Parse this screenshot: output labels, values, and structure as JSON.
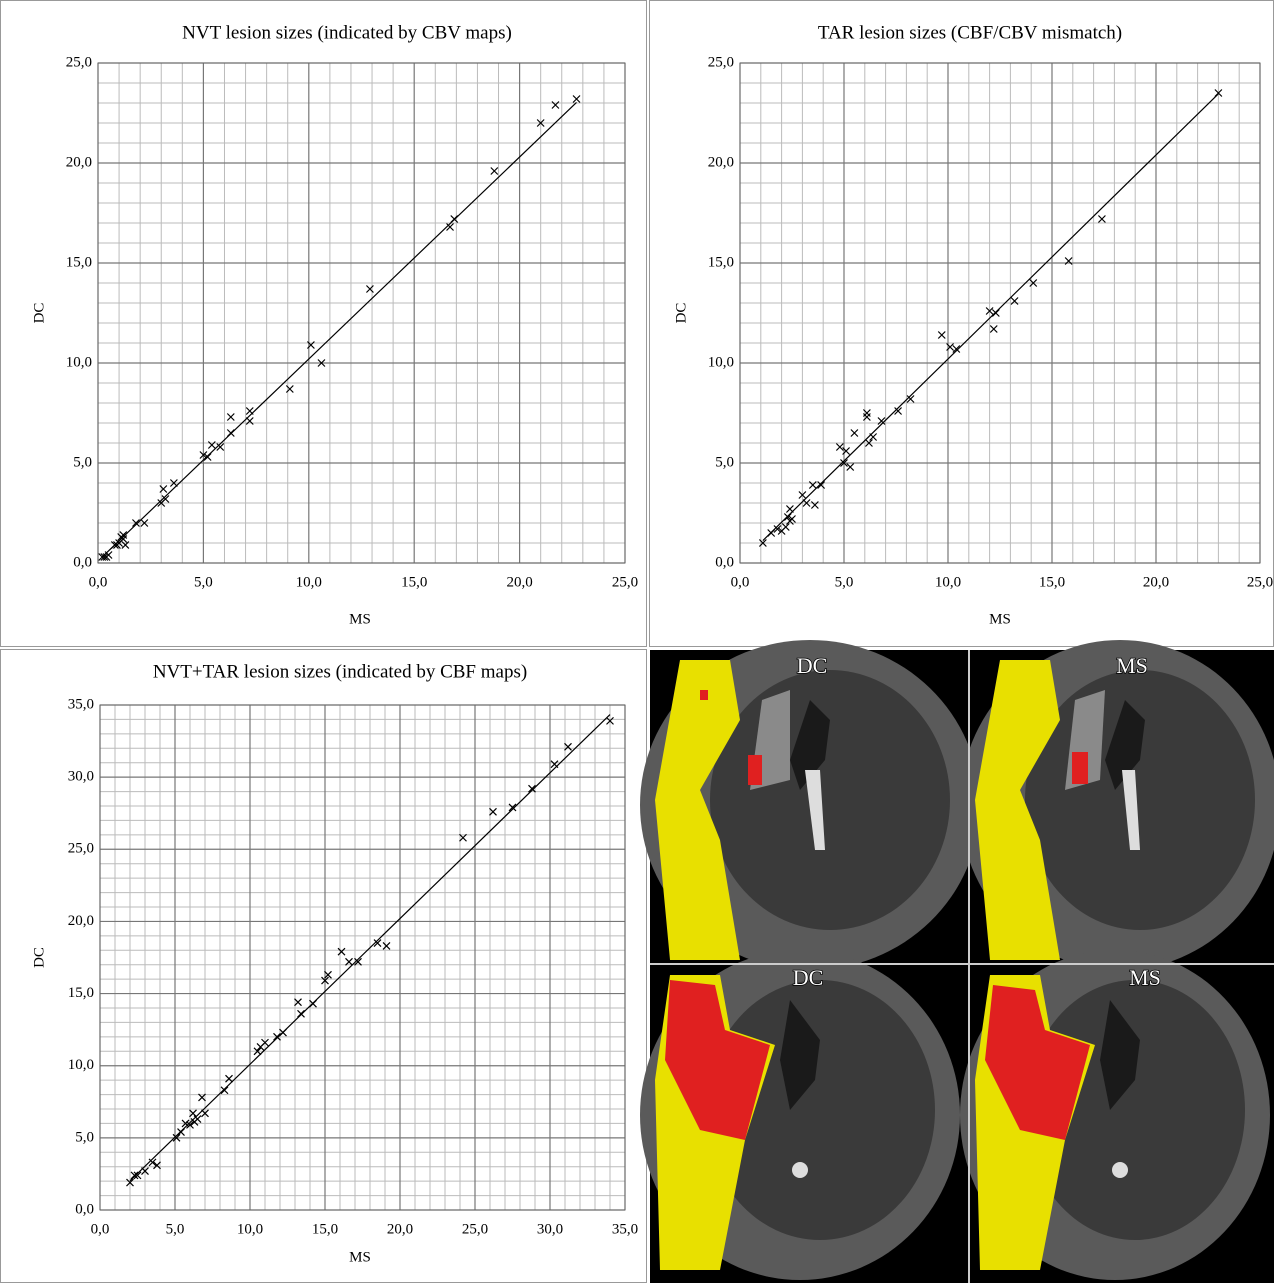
{
  "chart_data": [
    {
      "type": "scatter",
      "title": "NVT lesion sizes (indicated by CBV maps)",
      "x_label": "MS",
      "y_label": "DC",
      "x": [
        0.2,
        0.3,
        0.4,
        0.5,
        0.8,
        0.9,
        1.0,
        1.1,
        1.2,
        1.3,
        1.2,
        1.8,
        2.2,
        3.0,
        3.1,
        3.2,
        3.6,
        5.0,
        5.2,
        5.4,
        5.8,
        6.3,
        6.3,
        7.2,
        7.2,
        9.1,
        10.1,
        10.6,
        12.9,
        16.7,
        16.9,
        18.8,
        21.0,
        21.7,
        22.7
      ],
      "values": [
        0.3,
        0.3,
        0.3,
        0.4,
        0.9,
        0.9,
        1.0,
        1.3,
        1.2,
        0.9,
        1.4,
        2.0,
        2.0,
        3.0,
        3.7,
        3.2,
        4.0,
        5.4,
        5.3,
        5.9,
        5.8,
        6.5,
        7.3,
        7.1,
        7.6,
        8.7,
        10.9,
        10.0,
        13.7,
        16.8,
        17.2,
        19.6,
        22.0,
        22.9,
        23.2
      ],
      "trendline": {
        "slope": 1.01,
        "intercept": 0.1
      },
      "xlim": [
        0,
        25
      ],
      "ylim": [
        0,
        25
      ],
      "xticks": [
        {
          "value": 0,
          "label": "0,0"
        },
        {
          "value": 5,
          "label": "5,0"
        },
        {
          "value": 10,
          "label": "10,0"
        },
        {
          "value": 15,
          "label": "15,0"
        },
        {
          "value": 20,
          "label": "20,0"
        },
        {
          "value": 25,
          "label": "25,0"
        }
      ],
      "yticks": [
        {
          "value": 0,
          "label": "0,0"
        },
        {
          "value": 5,
          "label": "5,0"
        },
        {
          "value": 10,
          "label": "10,0"
        },
        {
          "value": 15,
          "label": "15,0"
        },
        {
          "value": 20,
          "label": "20,0"
        },
        {
          "value": 25,
          "label": "25,0"
        }
      ],
      "grid": true
    },
    {
      "type": "scatter",
      "title": "TAR lesion sizes (CBF/CBV mismatch)",
      "x_label": "MS",
      "y_label": "DC",
      "x": [
        1.1,
        1.5,
        1.8,
        2.0,
        2.2,
        2.3,
        2.4,
        2.4,
        2.5,
        3.0,
        3.2,
        3.5,
        3.6,
        3.9,
        4.8,
        5.0,
        5.1,
        5.3,
        5.5,
        6.1,
        6.1,
        6.2,
        6.4,
        6.8,
        7.6,
        8.2,
        9.7,
        10.1,
        10.4,
        12.0,
        12.2,
        12.3,
        13.2,
        14.1,
        15.8,
        17.4,
        23.0
      ],
      "values": [
        1.0,
        1.5,
        1.7,
        1.6,
        1.8,
        2.3,
        2.1,
        2.7,
        2.2,
        3.4,
        3.0,
        3.9,
        2.9,
        3.9,
        5.8,
        5.0,
        5.6,
        4.8,
        6.5,
        7.3,
        7.5,
        6.0,
        6.3,
        7.1,
        7.6,
        8.2,
        11.4,
        10.8,
        10.7,
        12.6,
        11.7,
        12.5,
        13.1,
        14.0,
        15.1,
        17.2,
        23.5
      ],
      "trendline": {
        "slope": 1.02,
        "intercept": 0.0
      },
      "xlim": [
        0,
        25
      ],
      "ylim": [
        0,
        25
      ],
      "xticks": [
        {
          "value": 0,
          "label": "0,0"
        },
        {
          "value": 5,
          "label": "5,0"
        },
        {
          "value": 10,
          "label": "10,0"
        },
        {
          "value": 15,
          "label": "15,0"
        },
        {
          "value": 20,
          "label": "20,0"
        },
        {
          "value": 25,
          "label": "25,0"
        }
      ],
      "yticks": [
        {
          "value": 0,
          "label": "0,0"
        },
        {
          "value": 5,
          "label": "5,0"
        },
        {
          "value": 10,
          "label": "10,0"
        },
        {
          "value": 15,
          "label": "15,0"
        },
        {
          "value": 20,
          "label": "20,0"
        },
        {
          "value": 25,
          "label": "25,0"
        }
      ],
      "grid": true
    },
    {
      "type": "scatter",
      "title": "NVT+TAR lesion sizes (indicated by CBF maps)",
      "x_label": "MS",
      "y_label": "DC",
      "x": [
        2.0,
        2.3,
        2.5,
        3.0,
        3.5,
        3.8,
        5.1,
        5.4,
        5.7,
        6.0,
        6.2,
        6.3,
        6.5,
        6.8,
        7.0,
        8.3,
        8.6,
        10.5,
        10.7,
        11.0,
        11.8,
        12.2,
        13.2,
        13.4,
        14.2,
        15.0,
        15.2,
        16.1,
        16.6,
        17.2,
        18.5,
        19.1,
        24.2,
        26.2,
        27.5,
        28.8,
        30.3,
        31.2,
        34.0
      ],
      "values": [
        1.9,
        2.4,
        2.4,
        2.7,
        3.3,
        3.1,
        5.0,
        5.4,
        6.0,
        5.9,
        6.7,
        6.1,
        6.3,
        7.8,
        6.7,
        8.3,
        9.1,
        11.0,
        11.3,
        11.6,
        12.0,
        12.3,
        14.4,
        13.6,
        14.3,
        15.9,
        16.3,
        17.9,
        17.2,
        17.2,
        18.5,
        18.3,
        25.8,
        27.6,
        27.9,
        29.2,
        30.9,
        32.1,
        33.9
      ],
      "trendline": {
        "slope": 1.01,
        "intercept": 0.0
      },
      "xlim": [
        0,
        35
      ],
      "ylim": [
        0,
        35
      ],
      "xticks": [
        {
          "value": 0,
          "label": "0,0"
        },
        {
          "value": 5,
          "label": "5,0"
        },
        {
          "value": 10,
          "label": "10,0"
        },
        {
          "value": 15,
          "label": "15,0"
        },
        {
          "value": 20,
          "label": "20,0"
        },
        {
          "value": 25,
          "label": "25,0"
        },
        {
          "value": 30,
          "label": "30,0"
        },
        {
          "value": 35,
          "label": "35,0"
        }
      ],
      "yticks": [
        {
          "value": 0,
          "label": "0,0"
        },
        {
          "value": 5,
          "label": "5,0"
        },
        {
          "value": 10,
          "label": "10,0"
        },
        {
          "value": 15,
          "label": "15,0"
        },
        {
          "value": 20,
          "label": "20,0"
        },
        {
          "value": 25,
          "label": "25,0"
        },
        {
          "value": 30,
          "label": "30,0"
        },
        {
          "value": 35,
          "label": "35,0"
        }
      ],
      "grid": true
    }
  ],
  "images": {
    "labels": [
      "DC",
      "MS",
      "DC",
      "MS"
    ]
  }
}
